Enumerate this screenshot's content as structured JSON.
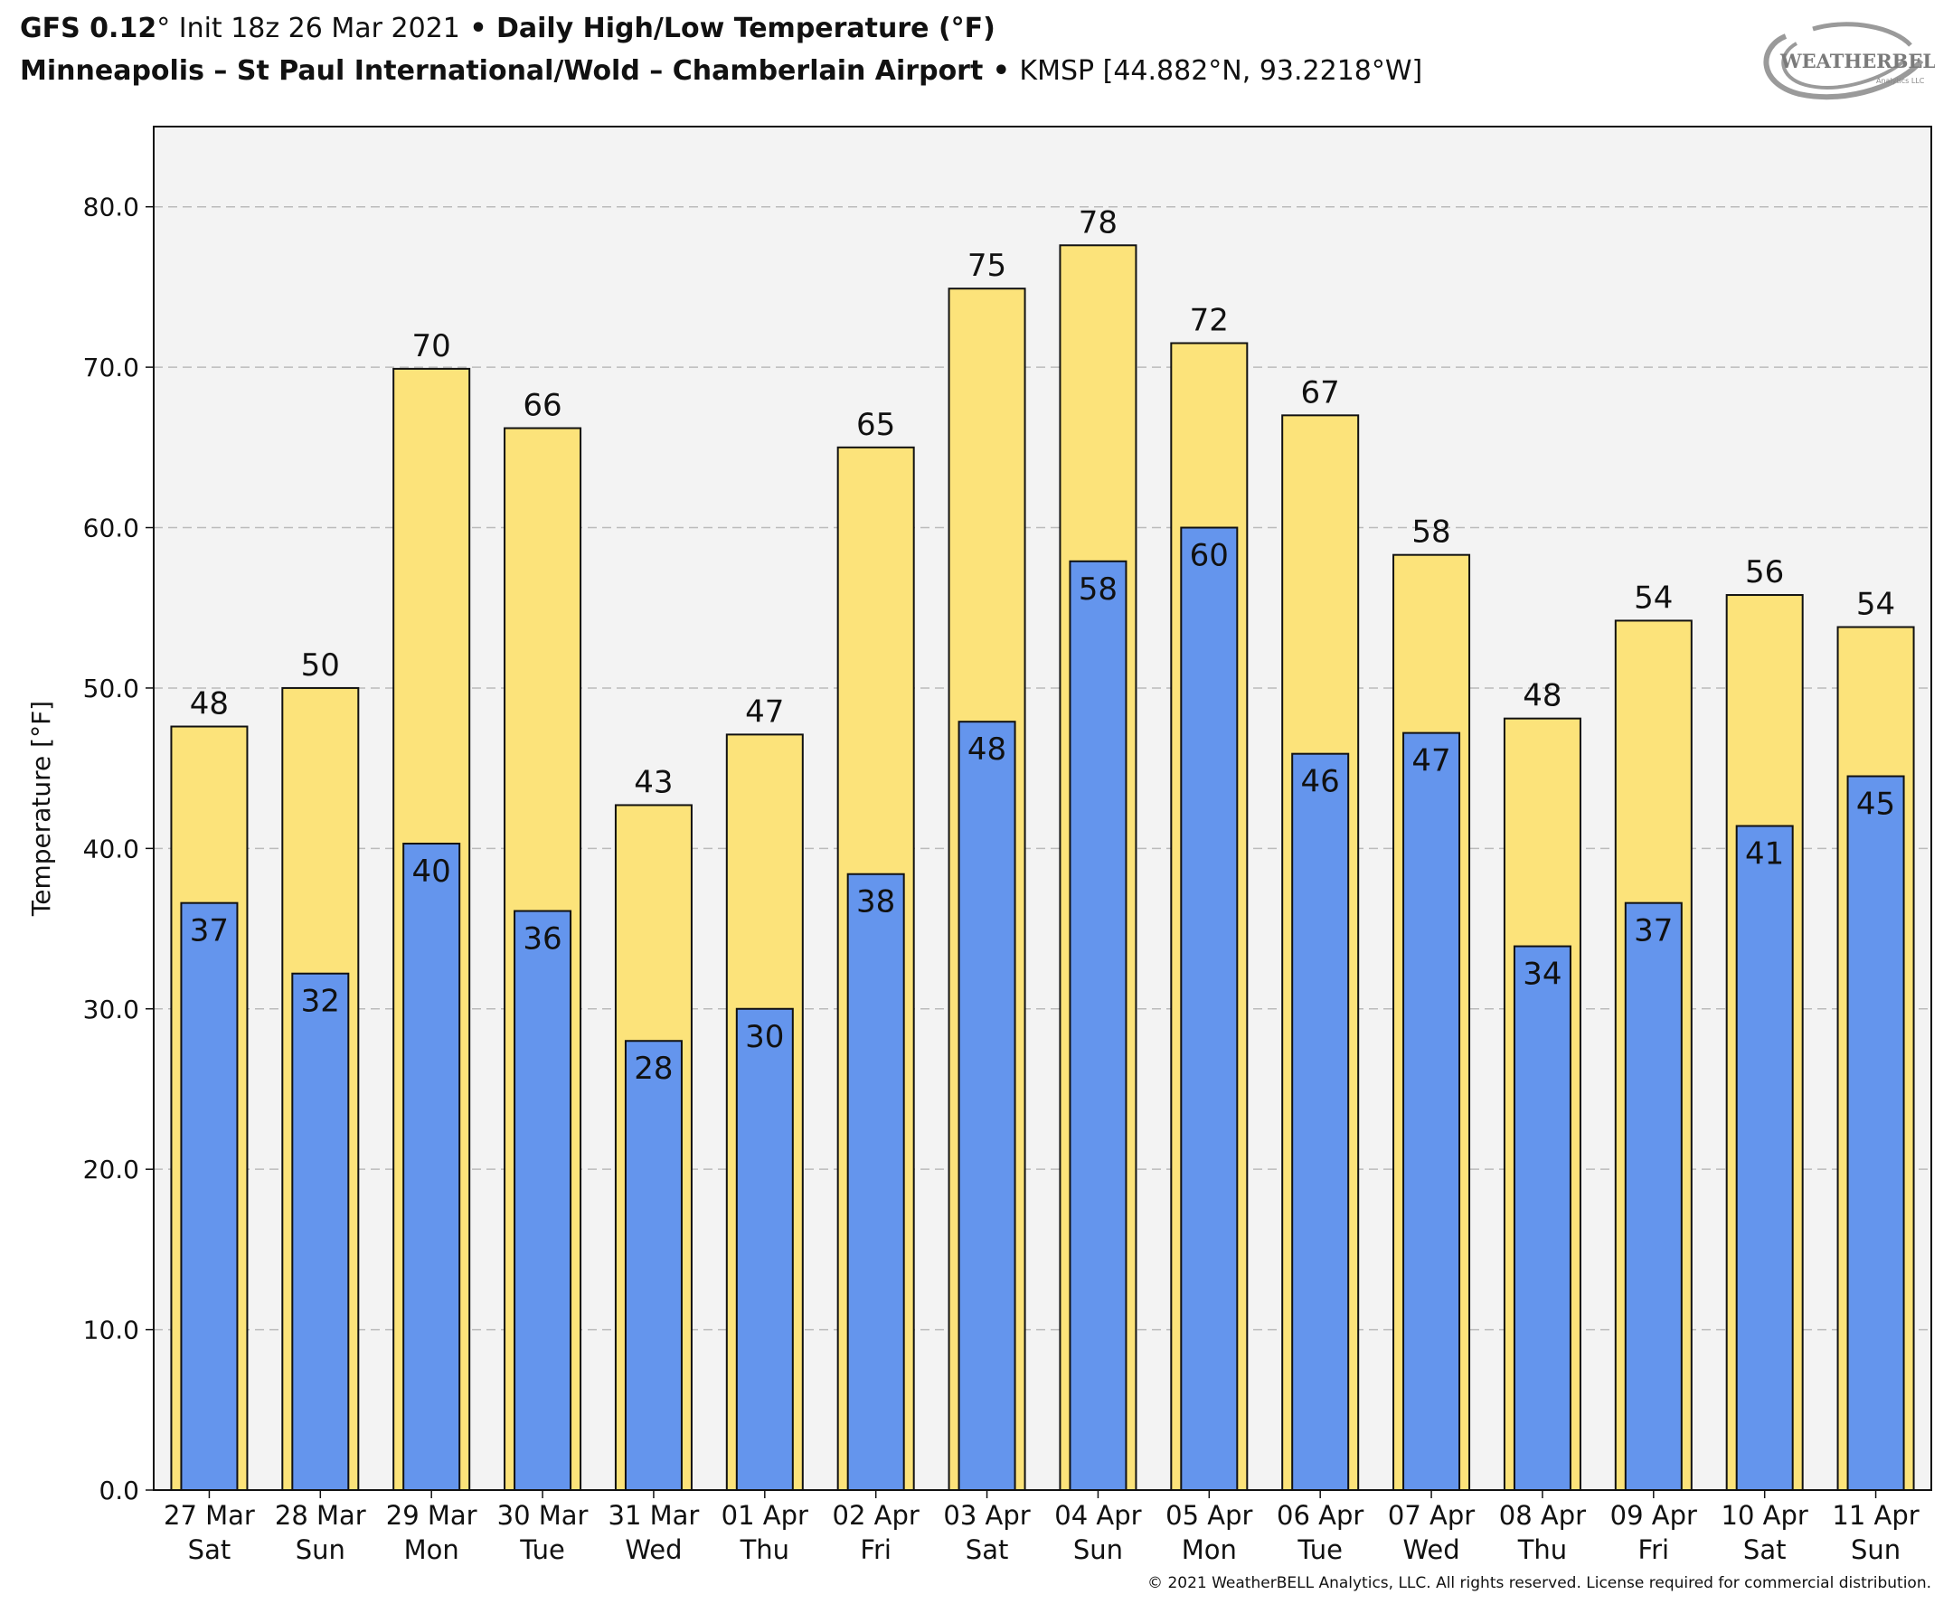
{
  "header": {
    "line1": {
      "model": "GFS 0.12",
      "deg": "°",
      "init": " Init 18z 26 Mar 2021",
      "sep": " • ",
      "product": "Daily High/Low Temperature (°F)"
    },
    "line2": {
      "station": "Minneapolis – St Paul International/Wold – Chamberlain Airport",
      "sep": " • ",
      "code": "KMSP [44.882°N, 93.2218°W]"
    }
  },
  "logo": {
    "text": "WEATHERBELL",
    "subtext": "Analytics LLC"
  },
  "copyright": "© 2021 WeatherBELL Analytics, LLC. All rights reserved. License required for commercial distribution.",
  "colors": {
    "high": "#FCE37A",
    "low": "#6495ED",
    "plot_bg": "#F3F3F3",
    "grid": "#BBBBBB"
  },
  "chart_data": {
    "type": "bar",
    "ylabel": "Temperature [°F]",
    "ylim": [
      0,
      85
    ],
    "yticks": [
      "0.0",
      "10.0",
      "20.0",
      "30.0",
      "40.0",
      "50.0",
      "60.0",
      "70.0",
      "80.0"
    ],
    "grid": true,
    "categories": [
      [
        "27 Mar",
        "Sat"
      ],
      [
        "28 Mar",
        "Sun"
      ],
      [
        "29 Mar",
        "Mon"
      ],
      [
        "30 Mar",
        "Tue"
      ],
      [
        "31 Mar",
        "Wed"
      ],
      [
        "01 Apr",
        "Thu"
      ],
      [
        "02 Apr",
        "Fri"
      ],
      [
        "03 Apr",
        "Sat"
      ],
      [
        "04 Apr",
        "Sun"
      ],
      [
        "05 Apr",
        "Mon"
      ],
      [
        "06 Apr",
        "Tue"
      ],
      [
        "07 Apr",
        "Wed"
      ],
      [
        "08 Apr",
        "Thu"
      ],
      [
        "09 Apr",
        "Fri"
      ],
      [
        "10 Apr",
        "Sat"
      ],
      [
        "11 Apr",
        "Sun"
      ]
    ],
    "series": [
      {
        "key": "high",
        "values": [
          47.6,
          50.0,
          69.9,
          66.2,
          42.7,
          47.1,
          65.0,
          74.9,
          77.6,
          71.5,
          67.0,
          58.3,
          48.1,
          54.2,
          55.8,
          53.8
        ],
        "labels": [
          "48",
          "50",
          "70",
          "66",
          "43",
          "47",
          "65",
          "75",
          "78",
          "72",
          "67",
          "58",
          "48",
          "54",
          "56",
          "54"
        ]
      },
      {
        "key": "low",
        "values": [
          36.6,
          32.2,
          40.3,
          36.1,
          28.0,
          30.0,
          38.4,
          47.9,
          57.9,
          60.0,
          45.9,
          47.2,
          33.9,
          36.6,
          41.4,
          44.5
        ],
        "labels": [
          "37",
          "32",
          "40",
          "36",
          "28",
          "30",
          "38",
          "48",
          "58",
          "60",
          "46",
          "47",
          "34",
          "37",
          "41",
          "45"
        ]
      }
    ]
  }
}
